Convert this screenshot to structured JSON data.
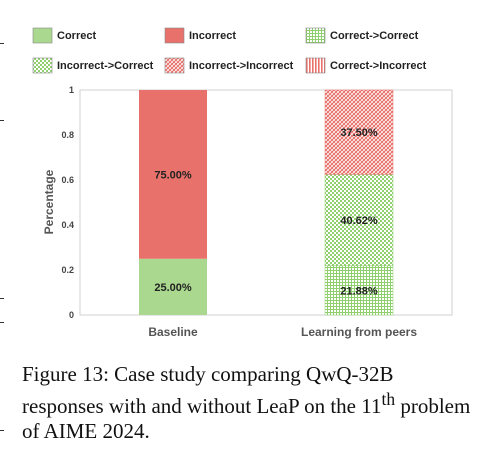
{
  "chart_data": {
    "type": "bar",
    "stacked": true,
    "categories": [
      "Baseline",
      "Learning from peers"
    ],
    "ylabel": "Percentage",
    "ylim": [
      0,
      1
    ],
    "yticks": [
      "0",
      "0.2",
      "0.4",
      "0.6",
      "0.8",
      "1"
    ],
    "legend_position": "top",
    "legend": [
      "Correct",
      "Incorrect",
      "Correct->Correct",
      "Incorrect->Correct",
      "Incorrect->Incorrect",
      "Correct->Incorrect"
    ],
    "series": [
      {
        "name": "Correct",
        "values": [
          0.25,
          0
        ],
        "labels": [
          "25.00%",
          ""
        ],
        "color": "#a9d88e",
        "pattern": "solid"
      },
      {
        "name": "Incorrect",
        "values": [
          0.75,
          0
        ],
        "labels": [
          "75.00%",
          ""
        ],
        "color": "#e8716b",
        "pattern": "solid"
      },
      {
        "name": "Correct->Correct",
        "values": [
          0,
          0.2188
        ],
        "labels": [
          "",
          "21.88%"
        ],
        "color": "#8fcf6e",
        "pattern": "grid"
      },
      {
        "name": "Incorrect->Correct",
        "values": [
          0,
          0.4062
        ],
        "labels": [
          "",
          "40.62%"
        ],
        "color": "#8fcf6e",
        "pattern": "dots"
      },
      {
        "name": "Incorrect->Incorrect",
        "values": [
          0,
          0.375
        ],
        "labels": [
          "",
          "37.50%"
        ],
        "color": "#e8716b",
        "pattern": "diag"
      },
      {
        "name": "Correct->Incorrect",
        "values": [
          0,
          0
        ],
        "labels": [
          "",
          ""
        ],
        "color": "#e8716b",
        "pattern": "vert"
      }
    ]
  },
  "caption": {
    "prefix": "Figure 13: Case study comparing QwQ-32B responses with and without LeaP on the 11",
    "sup": "th",
    "suffix": " problem of AIME 2024."
  }
}
